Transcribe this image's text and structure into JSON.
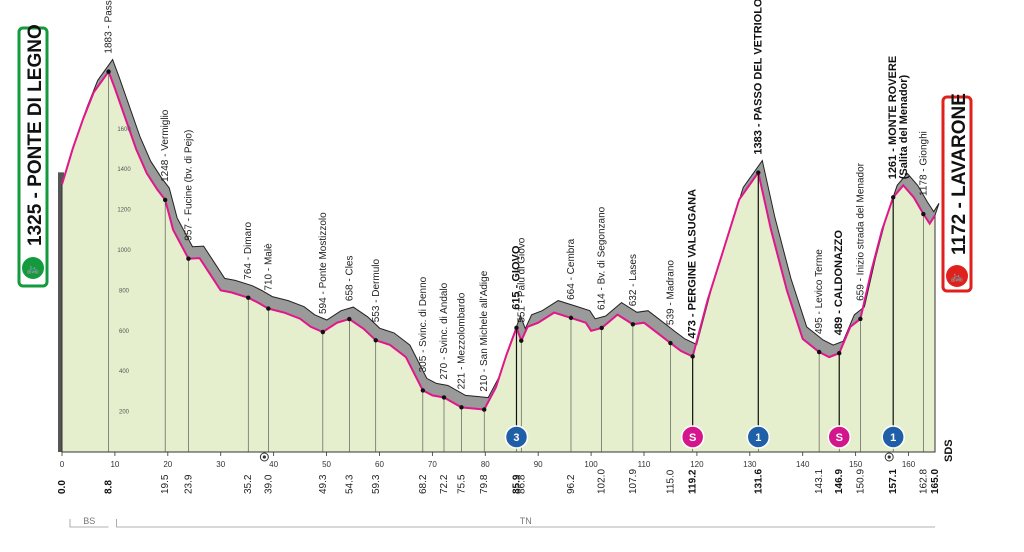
{
  "start": {
    "elevation": "1325",
    "name": "PONTE DI LEGNO"
  },
  "finish": {
    "elevation": "1172",
    "name": "LAVARONE"
  },
  "km_marks": [
    {
      "km": 0.0,
      "label": "0.0",
      "bold": true
    },
    {
      "km": 8.8,
      "label": "8.8",
      "bold": true
    },
    {
      "km": 19.5,
      "label": "19.5",
      "bold": false
    },
    {
      "km": 23.9,
      "label": "23.9",
      "bold": false
    },
    {
      "km": 35.2,
      "label": "35.2",
      "bold": false
    },
    {
      "km": 39.0,
      "label": "39.0",
      "bold": false
    },
    {
      "km": 49.3,
      "label": "49.3",
      "bold": false
    },
    {
      "km": 54.3,
      "label": "54.3",
      "bold": false
    },
    {
      "km": 59.3,
      "label": "59.3",
      "bold": false
    },
    {
      "km": 68.2,
      "label": "68.2",
      "bold": false
    },
    {
      "km": 72.2,
      "label": "72.2",
      "bold": false
    },
    {
      "km": 75.5,
      "label": "75.5",
      "bold": false
    },
    {
      "km": 79.8,
      "label": "79.8",
      "bold": false
    },
    {
      "km": 85.9,
      "label": "85.9",
      "bold": true
    },
    {
      "km": 86.8,
      "label": "86.8",
      "bold": false
    },
    {
      "km": 96.2,
      "label": "96.2",
      "bold": false
    },
    {
      "km": 102.0,
      "label": "102.0",
      "bold": false
    },
    {
      "km": 107.9,
      "label": "107.9",
      "bold": false
    },
    {
      "km": 115.0,
      "label": "115.0",
      "bold": false
    },
    {
      "km": 119.2,
      "label": "119.2",
      "bold": true
    },
    {
      "km": 131.6,
      "label": "131.6",
      "bold": true
    },
    {
      "km": 143.1,
      "label": "143.1",
      "bold": false
    },
    {
      "km": 146.9,
      "label": "146.9",
      "bold": true
    },
    {
      "km": 150.9,
      "label": "150.9",
      "bold": false
    },
    {
      "km": 157.1,
      "label": "157.1",
      "bold": true
    },
    {
      "km": 162.8,
      "label": "162.8",
      "bold": false
    },
    {
      "km": 165.0,
      "label": "165.0",
      "bold": true
    }
  ],
  "waypoints": [
    {
      "km": 8.8,
      "elev": 1883,
      "text": "1883 - Passo del Tonale",
      "bold": false
    },
    {
      "km": 19.5,
      "elev": 1248,
      "text": "1248 - Vermiglio",
      "bold": false
    },
    {
      "km": 23.9,
      "elev": 957,
      "text": "957 - Fucine (bv. di Pejo)",
      "bold": false
    },
    {
      "km": 35.2,
      "elev": 764,
      "text": "764 - Dimaro",
      "bold": false
    },
    {
      "km": 39.0,
      "elev": 710,
      "text": "710 - Malè",
      "bold": false
    },
    {
      "km": 49.3,
      "elev": 594,
      "text": "594 - Ponte Mostizzolo",
      "bold": false
    },
    {
      "km": 54.3,
      "elev": 658,
      "text": "658 - Cles",
      "bold": false
    },
    {
      "km": 59.3,
      "elev": 553,
      "text": "553 - Dermulo",
      "bold": false
    },
    {
      "km": 68.2,
      "elev": 305,
      "text": "305 - Svinc. di Denno",
      "bold": false
    },
    {
      "km": 72.2,
      "elev": 270,
      "text": "270 - Svinc. di Andalo",
      "bold": false
    },
    {
      "km": 75.5,
      "elev": 221,
      "text": "221 - Mezzolombardo",
      "bold": false
    },
    {
      "km": 79.8,
      "elev": 210,
      "text": "210 - San Michele all'Adige",
      "bold": false
    },
    {
      "km": 85.9,
      "elev": 615,
      "text": "615 - GIOVO",
      "bold": true
    },
    {
      "km": 86.8,
      "elev": 551,
      "text": "551 - Palù di Giovo",
      "bold": false
    },
    {
      "km": 96.2,
      "elev": 664,
      "text": "664 - Cembra",
      "bold": false
    },
    {
      "km": 102.0,
      "elev": 614,
      "text": "614 - Bv. di Segonzano",
      "bold": false
    },
    {
      "km": 107.9,
      "elev": 632,
      "text": "632 - Lases",
      "bold": false
    },
    {
      "km": 115.0,
      "elev": 539,
      "text": "539 - Madrano",
      "bold": false
    },
    {
      "km": 119.2,
      "elev": 473,
      "text": "473 - PERGINE VALSUGANA",
      "bold": true
    },
    {
      "km": 131.6,
      "elev": 1383,
      "text": "1383 - PASSO DEL VETRIOLO",
      "bold": true
    },
    {
      "km": 143.1,
      "elev": 495,
      "text": "495 - Levico Terme",
      "bold": false
    },
    {
      "km": 146.9,
      "elev": 489,
      "text": "489 - CALDONAZZO",
      "bold": true
    },
    {
      "km": 150.9,
      "elev": 659,
      "text": "659 - Inizio strada del Menador",
      "bold": false
    },
    {
      "km": 157.1,
      "elev": 1261,
      "text": "1261 - MONTE ROVERE",
      "text2": "(Salita del Menador)",
      "bold": true
    },
    {
      "km": 162.8,
      "elev": 1178,
      "text": "1178 - Gionghi",
      "bold": false
    }
  ],
  "badges": [
    {
      "km": 85.9,
      "label": "3",
      "kind": "gpm",
      "color": "#1f5fa8"
    },
    {
      "km": 119.2,
      "label": "S",
      "kind": "sprint",
      "color": "#d4168c"
    },
    {
      "km": 131.6,
      "label": "1",
      "kind": "gpm",
      "color": "#1f5fa8"
    },
    {
      "km": 146.9,
      "label": "S",
      "kind": "sprint",
      "color": "#d4168c"
    },
    {
      "km": 157.1,
      "label": "1",
      "kind": "gpm",
      "color": "#1f5fa8"
    }
  ],
  "provinces": [
    {
      "label": "BS",
      "from_km": 0,
      "to_km": 8.8
    },
    {
      "label": "TN",
      "from_km": 8.8,
      "to_km": 165
    }
  ],
  "brand": "SDS",
  "colors": {
    "profile_fill": "#e6efcd",
    "side_fill": "#9a9a9a",
    "road_line": "#e0168c",
    "start": "#139a3c",
    "finish": "#e0201c"
  },
  "chart_data": {
    "type": "area",
    "xlabel": "",
    "ylabel": "",
    "x_unit": "km",
    "y_unit": "m",
    "xlim": [
      0,
      165
    ],
    "ylim": [
      0,
      2000
    ],
    "x_ticks": [
      0,
      10,
      20,
      30,
      40,
      50,
      60,
      70,
      80,
      90,
      100,
      110,
      120,
      130,
      140,
      150,
      160
    ],
    "y_ticks": [
      200,
      400,
      600,
      800,
      1000,
      1200,
      1400,
      1600
    ],
    "grid": true,
    "x": [
      0,
      2,
      4,
      6,
      8.8,
      10,
      12,
      14,
      16,
      18,
      19.5,
      21,
      23.9,
      26,
      28,
      30,
      32,
      35.2,
      37,
      39,
      42,
      45,
      47,
      49.3,
      52,
      54.3,
      57,
      59.3,
      62,
      65,
      68.2,
      70,
      72.2,
      75.5,
      78,
      79.8,
      82,
      84,
      85.9,
      86.8,
      88,
      90,
      93,
      96.2,
      99,
      100,
      102,
      105,
      107.9,
      110,
      112,
      115,
      117,
      119.2,
      122,
      125,
      128,
      131.6,
      134,
      137,
      140,
      143.1,
      145,
      146.9,
      149,
      150.9,
      153,
      155,
      157.1,
      159,
      161,
      162.8,
      164,
      165
    ],
    "y": [
      1325,
      1500,
      1650,
      1780,
      1883,
      1800,
      1650,
      1500,
      1380,
      1300,
      1248,
      1100,
      957,
      960,
      880,
      800,
      790,
      764,
      740,
      710,
      690,
      660,
      620,
      594,
      640,
      658,
      610,
      553,
      530,
      470,
      305,
      280,
      270,
      221,
      215,
      210,
      320,
      480,
      615,
      551,
      620,
      640,
      690,
      664,
      640,
      600,
      614,
      680,
      632,
      640,
      600,
      539,
      500,
      473,
      750,
      1000,
      1250,
      1383,
      1100,
      800,
      560,
      495,
      470,
      489,
      620,
      659,
      900,
      1100,
      1261,
      1320,
      1260,
      1178,
      1130,
      1172
    ]
  }
}
